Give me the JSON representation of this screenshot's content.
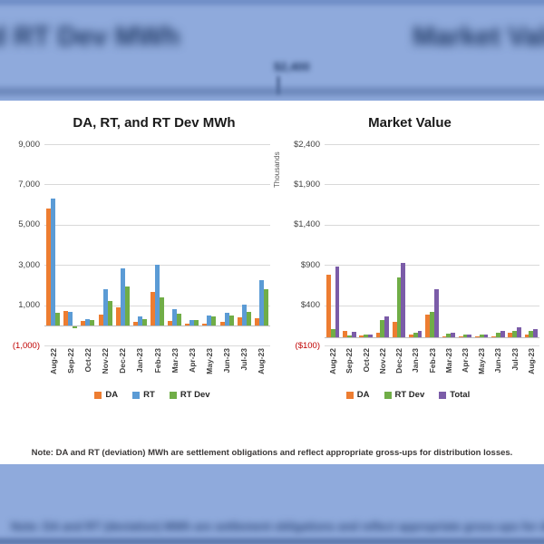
{
  "background": {
    "blur_title_left": "DA, RT, and RT Dev MWh",
    "blur_title_right": "Market Value",
    "blur_axis_label": "$2,400",
    "blur_note": "Note: DA and RT (deviation) MWh are settlement obligations and reflect appropriate gross-ups for distribution losses."
  },
  "note": "Note: DA and RT (deviation) MWh are settlement obligations and reflect appropriate gross-ups for distribution losses.",
  "colors": {
    "da_orange": "#ED7D31",
    "rt_blue": "#5B9BD5",
    "rtdev_green": "#70AD47",
    "total_purple": "#7B5CA8",
    "negative_label_red": "#C00000",
    "background_blue": "#8FAADC"
  },
  "chart_data": [
    {
      "type": "bar",
      "title": "DA, RT, and RT Dev MWh",
      "categories": [
        "Aug-22",
        "Sep-22",
        "Oct-22",
        "Nov-22",
        "Dec-22",
        "Jan-23",
        "Feb-23",
        "Mar-23",
        "Apr-23",
        "May-23",
        "Jun-23",
        "Jul-23",
        "Aug-23"
      ],
      "series": [
        {
          "name": "DA",
          "color": "#ED7D31",
          "values": [
            5800,
            700,
            220,
            530,
            900,
            160,
            1650,
            220,
            100,
            60,
            190,
            390,
            340
          ]
        },
        {
          "name": "RT",
          "color": "#5B9BD5",
          "values": [
            6300,
            650,
            320,
            1780,
            2850,
            430,
            3000,
            810,
            260,
            470,
            625,
            1030,
            2230
          ]
        },
        {
          "name": "RT Dev",
          "color": "#70AD47",
          "values": [
            600,
            -100,
            260,
            1200,
            1950,
            310,
            1400,
            580,
            260,
            420,
            500,
            650,
            1800
          ]
        }
      ],
      "ylim": [
        -1000,
        9000
      ],
      "yticks": [
        {
          "label": "9,000",
          "value": 9000
        },
        {
          "label": "7,000",
          "value": 7000
        },
        {
          "label": "5,000",
          "value": 5000
        },
        {
          "label": "3,000",
          "value": 3000
        },
        {
          "label": "1,000",
          "value": 1000
        },
        {
          "label": "(1,000)",
          "value": -1000,
          "negative": true
        }
      ],
      "grid": true,
      "legend_position": "bottom"
    },
    {
      "type": "bar",
      "title": "Market Value",
      "ylabel": "Thousands",
      "categories": [
        "Aug-22",
        "Sep-22",
        "Oct-22",
        "Nov-22",
        "Dec-22",
        "Jan-23",
        "Feb-23",
        "Mar-23",
        "Apr-23",
        "May-23",
        "Jun-23",
        "Jul-23",
        "Aug-23"
      ],
      "series": [
        {
          "name": "DA",
          "color": "#ED7D31",
          "values": [
            780,
            75,
            22,
            55,
            190,
            30,
            285,
            15,
            8,
            8,
            15,
            60,
            37
          ]
        },
        {
          "name": "RT Dev",
          "color": "#70AD47",
          "values": [
            100,
            20,
            37,
            210,
            740,
            60,
            320,
            45,
            30,
            30,
            60,
            82,
            75
          ]
        },
        {
          "name": "Total",
          "color": "#7B5CA8",
          "values": [
            880,
            67,
            30,
            260,
            925,
            82,
            600,
            60,
            35,
            37,
            82,
            125,
            105
          ]
        }
      ],
      "ylim": [
        -100,
        2400
      ],
      "yticks": [
        {
          "label": "$2,400",
          "value": 2400
        },
        {
          "label": "$1,900",
          "value": 1900
        },
        {
          "label": "$1,400",
          "value": 1400
        },
        {
          "label": "$900",
          "value": 900
        },
        {
          "label": "$400",
          "value": 400
        },
        {
          "label": "($100)",
          "value": -100,
          "negative": true
        }
      ],
      "grid": true,
      "legend_position": "bottom"
    }
  ]
}
